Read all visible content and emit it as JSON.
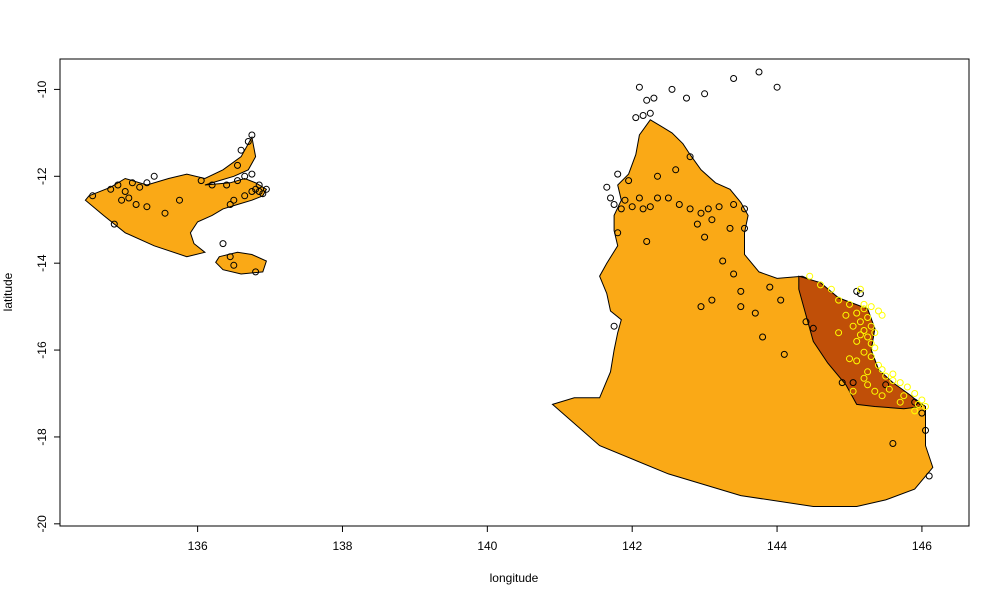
{
  "chart_data": {
    "type": "scatter",
    "title": "",
    "xlabel": "longitude",
    "ylabel": "latitude",
    "xlim": [
      134.1,
      146.65
    ],
    "ylim": [
      -20.05,
      -9.3
    ],
    "xticks": [
      "136",
      "138",
      "140",
      "142",
      "144",
      "146"
    ],
    "yticks": [
      "-10",
      "-12",
      "-14",
      "-16",
      "-18",
      "-20"
    ],
    "grid": false,
    "colors": {
      "region_fill": "#FAA916",
      "subregion_fill": "#C04F08",
      "outline": "#000000",
      "points_outside": "#000000",
      "points_inside": "#FFFF00"
    },
    "regions": [
      {
        "id": "west-region",
        "polygon": [
          [
            134.5,
            -12.45
          ],
          [
            134.8,
            -12.25
          ],
          [
            135.0,
            -12.05
          ],
          [
            135.3,
            -12.2
          ],
          [
            135.6,
            -12.05
          ],
          [
            135.85,
            -11.95
          ],
          [
            136.1,
            -12.05
          ],
          [
            136.35,
            -11.85
          ],
          [
            136.6,
            -11.55
          ],
          [
            136.75,
            -11.1
          ],
          [
            136.8,
            -11.55
          ],
          [
            136.7,
            -11.85
          ],
          [
            136.5,
            -12.0
          ],
          [
            136.3,
            -12.1
          ],
          [
            136.1,
            -12.2
          ],
          [
            136.45,
            -12.15
          ],
          [
            136.65,
            -12.05
          ],
          [
            136.8,
            -12.15
          ],
          [
            136.95,
            -12.3
          ],
          [
            136.9,
            -12.45
          ],
          [
            136.75,
            -12.55
          ],
          [
            136.55,
            -12.65
          ],
          [
            136.35,
            -12.75
          ],
          [
            136.2,
            -12.9
          ],
          [
            136.0,
            -13.05
          ],
          [
            135.9,
            -13.3
          ],
          [
            135.95,
            -13.55
          ],
          [
            136.1,
            -13.75
          ],
          [
            135.85,
            -13.85
          ],
          [
            135.4,
            -13.6
          ],
          [
            135.0,
            -13.3
          ],
          [
            134.7,
            -12.9
          ],
          [
            134.45,
            -12.55
          ]
        ]
      },
      {
        "id": "west-island",
        "polygon": [
          [
            136.3,
            -13.85
          ],
          [
            136.55,
            -13.75
          ],
          [
            136.75,
            -13.8
          ],
          [
            136.95,
            -13.95
          ],
          [
            136.9,
            -14.2
          ],
          [
            136.6,
            -14.25
          ],
          [
            136.35,
            -14.15
          ],
          [
            136.25,
            -13.98
          ]
        ]
      },
      {
        "id": "east-region",
        "polygon": [
          [
            141.55,
            -17.1
          ],
          [
            141.7,
            -16.5
          ],
          [
            141.75,
            -16.0
          ],
          [
            141.8,
            -15.6
          ],
          [
            141.85,
            -15.3
          ],
          [
            141.7,
            -15.1
          ],
          [
            141.65,
            -14.7
          ],
          [
            141.55,
            -14.3
          ],
          [
            141.65,
            -14.0
          ],
          [
            141.8,
            -13.6
          ],
          [
            141.75,
            -13.25
          ],
          [
            141.75,
            -12.9
          ],
          [
            141.85,
            -12.55
          ],
          [
            141.8,
            -12.2
          ],
          [
            141.95,
            -11.95
          ],
          [
            142.05,
            -11.5
          ],
          [
            142.1,
            -11.05
          ],
          [
            142.25,
            -10.7
          ],
          [
            142.4,
            -10.85
          ],
          [
            142.55,
            -11.0
          ],
          [
            142.7,
            -11.25
          ],
          [
            142.8,
            -11.5
          ],
          [
            142.95,
            -11.85
          ],
          [
            143.15,
            -12.15
          ],
          [
            143.35,
            -12.3
          ],
          [
            143.5,
            -12.6
          ],
          [
            143.6,
            -12.9
          ],
          [
            143.55,
            -13.3
          ],
          [
            143.55,
            -13.8
          ],
          [
            143.75,
            -14.2
          ],
          [
            144.0,
            -14.35
          ],
          [
            144.35,
            -14.3
          ],
          [
            144.55,
            -14.45
          ],
          [
            144.85,
            -14.8
          ],
          [
            145.2,
            -15.1
          ],
          [
            145.35,
            -15.5
          ],
          [
            145.3,
            -16.0
          ],
          [
            145.4,
            -16.45
          ],
          [
            145.55,
            -16.7
          ],
          [
            145.8,
            -17.0
          ],
          [
            146.05,
            -17.3
          ],
          [
            146.05,
            -17.8
          ],
          [
            146.05,
            -18.2
          ],
          [
            146.15,
            -18.7
          ],
          [
            145.9,
            -19.2
          ],
          [
            145.5,
            -19.45
          ],
          [
            145.1,
            -19.6
          ],
          [
            144.5,
            -19.6
          ],
          [
            143.5,
            -19.35
          ],
          [
            142.5,
            -18.85
          ],
          [
            141.55,
            -18.2
          ],
          [
            140.9,
            -17.25
          ],
          [
            141.2,
            -17.1
          ]
        ]
      },
      {
        "id": "sub-region",
        "polygon": [
          [
            144.3,
            -14.3
          ],
          [
            144.6,
            -14.45
          ],
          [
            144.85,
            -14.8
          ],
          [
            145.25,
            -15.05
          ],
          [
            145.35,
            -15.5
          ],
          [
            145.3,
            -16.0
          ],
          [
            145.4,
            -16.45
          ],
          [
            145.6,
            -16.75
          ],
          [
            145.85,
            -17.05
          ],
          [
            146.0,
            -17.3
          ],
          [
            145.75,
            -17.35
          ],
          [
            145.35,
            -17.3
          ],
          [
            145.1,
            -17.25
          ],
          [
            144.95,
            -16.8
          ],
          [
            144.7,
            -16.3
          ],
          [
            144.5,
            -15.8
          ],
          [
            144.4,
            -15.2
          ],
          [
            144.3,
            -14.6
          ]
        ]
      }
    ],
    "points_outside": [
      [
        134.55,
        -12.45
      ],
      [
        134.8,
        -12.3
      ],
      [
        134.9,
        -12.2
      ],
      [
        135.0,
        -12.35
      ],
      [
        135.05,
        -12.5
      ],
      [
        134.95,
        -12.55
      ],
      [
        135.1,
        -12.15
      ],
      [
        135.2,
        -12.25
      ],
      [
        135.3,
        -12.15
      ],
      [
        135.15,
        -12.65
      ],
      [
        134.85,
        -13.1
      ],
      [
        135.4,
        -12.0
      ],
      [
        135.3,
        -12.7
      ],
      [
        135.55,
        -12.85
      ],
      [
        135.75,
        -12.55
      ],
      [
        136.05,
        -12.1
      ],
      [
        136.2,
        -12.2
      ],
      [
        136.4,
        -12.2
      ],
      [
        136.55,
        -12.1
      ],
      [
        136.65,
        -12.0
      ],
      [
        136.75,
        -11.95
      ],
      [
        136.55,
        -11.75
      ],
      [
        136.7,
        -11.2
      ],
      [
        136.75,
        -11.05
      ],
      [
        136.6,
        -11.4
      ],
      [
        136.45,
        -12.65
      ],
      [
        136.5,
        -12.55
      ],
      [
        136.8,
        -12.3
      ],
      [
        136.85,
        -12.35
      ],
      [
        136.9,
        -12.4
      ],
      [
        136.95,
        -12.3
      ],
      [
        136.85,
        -12.2
      ],
      [
        136.75,
        -12.35
      ],
      [
        136.65,
        -12.45
      ],
      [
        136.35,
        -13.55
      ],
      [
        136.45,
        -13.85
      ],
      [
        136.5,
        -14.05
      ],
      [
        136.8,
        -14.2
      ],
      [
        142.1,
        -9.95
      ],
      [
        142.3,
        -10.2
      ],
      [
        142.2,
        -10.25
      ],
      [
        142.55,
        -10.0
      ],
      [
        142.75,
        -10.2
      ],
      [
        143.0,
        -10.1
      ],
      [
        143.4,
        -9.75
      ],
      [
        143.75,
        -9.6
      ],
      [
        144.0,
        -9.95
      ],
      [
        142.05,
        -10.65
      ],
      [
        142.15,
        -10.6
      ],
      [
        142.25,
        -10.55
      ],
      [
        142.8,
        -11.55
      ],
      [
        142.6,
        -11.85
      ],
      [
        142.35,
        -12.0
      ],
      [
        141.8,
        -11.95
      ],
      [
        141.95,
        -12.1
      ],
      [
        141.65,
        -12.25
      ],
      [
        141.7,
        -12.5
      ],
      [
        141.9,
        -12.55
      ],
      [
        141.75,
        -12.65
      ],
      [
        141.85,
        -12.75
      ],
      [
        142.0,
        -12.7
      ],
      [
        142.1,
        -12.5
      ],
      [
        142.15,
        -12.75
      ],
      [
        142.35,
        -12.5
      ],
      [
        142.5,
        -12.5
      ],
      [
        142.25,
        -12.7
      ],
      [
        142.65,
        -12.65
      ],
      [
        142.8,
        -12.75
      ],
      [
        142.95,
        -12.85
      ],
      [
        143.05,
        -12.75
      ],
      [
        143.2,
        -12.7
      ],
      [
        143.4,
        -12.65
      ],
      [
        143.55,
        -12.75
      ],
      [
        142.9,
        -13.1
      ],
      [
        143.1,
        -13.0
      ],
      [
        143.35,
        -13.2
      ],
      [
        143.55,
        -13.2
      ],
      [
        143.0,
        -13.4
      ],
      [
        143.25,
        -13.95
      ],
      [
        142.2,
        -13.5
      ],
      [
        141.8,
        -13.3
      ],
      [
        141.75,
        -15.45
      ],
      [
        143.4,
        -14.25
      ],
      [
        143.5,
        -14.65
      ],
      [
        143.1,
        -14.85
      ],
      [
        142.95,
        -15.0
      ],
      [
        143.5,
        -15.0
      ],
      [
        143.7,
        -15.15
      ],
      [
        143.8,
        -15.7
      ],
      [
        144.1,
        -16.1
      ],
      [
        143.9,
        -14.55
      ],
      [
        144.05,
        -14.85
      ],
      [
        144.4,
        -15.35
      ],
      [
        144.5,
        -15.5
      ],
      [
        144.9,
        -16.75
      ],
      [
        145.05,
        -16.75
      ],
      [
        145.5,
        -16.8
      ],
      [
        145.9,
        -17.2
      ],
      [
        146.0,
        -17.45
      ],
      [
        146.05,
        -17.85
      ],
      [
        145.6,
        -18.15
      ],
      [
        146.1,
        -18.9
      ],
      [
        145.1,
        -14.65
      ],
      [
        145.15,
        -14.7
      ]
    ],
    "points_inside": [
      [
        144.45,
        -14.3
      ],
      [
        144.6,
        -14.5
      ],
      [
        144.75,
        -14.6
      ],
      [
        144.85,
        -14.85
      ],
      [
        145.0,
        -14.95
      ],
      [
        145.2,
        -15.05
      ],
      [
        145.1,
        -15.15
      ],
      [
        145.25,
        -15.25
      ],
      [
        145.15,
        -15.35
      ],
      [
        145.3,
        -15.45
      ],
      [
        145.2,
        -15.55
      ],
      [
        145.35,
        -15.6
      ],
      [
        145.25,
        -15.7
      ],
      [
        145.1,
        -15.8
      ],
      [
        145.3,
        -15.85
      ],
      [
        145.35,
        -15.95
      ],
      [
        145.2,
        -16.05
      ],
      [
        145.3,
        -16.15
      ],
      [
        145.1,
        -16.25
      ],
      [
        145.4,
        -16.35
      ],
      [
        145.45,
        -16.45
      ],
      [
        145.25,
        -16.5
      ],
      [
        145.5,
        -16.6
      ],
      [
        145.6,
        -16.7
      ],
      [
        145.7,
        -16.75
      ],
      [
        145.8,
        -16.85
      ],
      [
        145.55,
        -16.9
      ],
      [
        145.35,
        -16.95
      ],
      [
        145.9,
        -17.0
      ],
      [
        146.0,
        -17.15
      ],
      [
        146.05,
        -17.3
      ],
      [
        145.9,
        -17.4
      ],
      [
        145.7,
        -17.2
      ],
      [
        145.45,
        -17.05
      ],
      [
        145.25,
        -16.8
      ],
      [
        145.0,
        -16.2
      ],
      [
        144.85,
        -15.6
      ],
      [
        144.95,
        -15.2
      ],
      [
        145.05,
        -15.45
      ],
      [
        145.4,
        -15.1
      ],
      [
        145.3,
        -15.0
      ],
      [
        145.45,
        -15.2
      ],
      [
        145.15,
        -15.65
      ],
      [
        145.2,
        -16.65
      ],
      [
        145.6,
        -16.55
      ],
      [
        145.75,
        -17.05
      ],
      [
        145.15,
        -14.6
      ],
      [
        145.2,
        -14.95
      ],
      [
        145.05,
        -16.95
      ],
      [
        145.95,
        -17.25
      ]
    ]
  }
}
